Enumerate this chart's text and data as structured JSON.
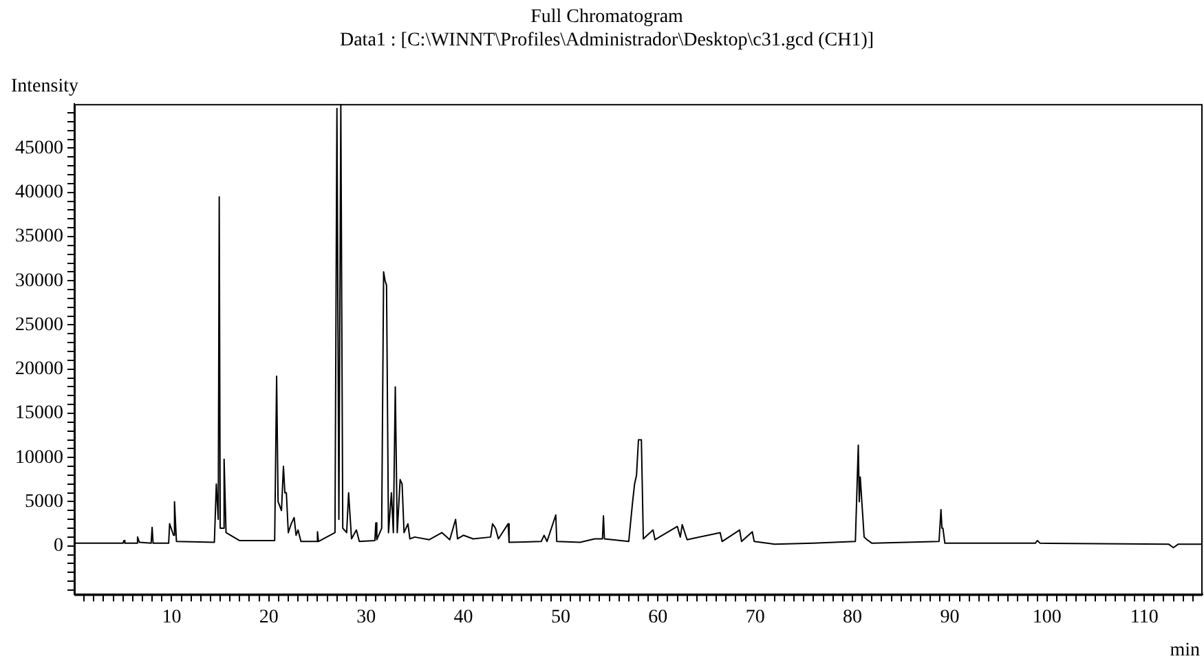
{
  "chart_data": {
    "type": "line",
    "title": "Full Chromatogram",
    "subtitle": "Data1 : [C:\\WINNT\\Profiles\\Administrador\\Desktop\\c31.gcd (CH1)]",
    "xlabel": "min",
    "ylabel": "Intensity",
    "x": [
      0,
      5,
      5.1,
      5.2,
      6.4,
      6.5,
      6.7,
      7.9,
      8,
      8.1,
      9.7,
      9.8,
      10.2,
      10.3,
      10.5,
      14.4,
      14.6,
      14.8,
      14.9,
      15.0,
      15.3,
      15.4,
      15.6,
      17,
      20.6,
      20.8,
      20.95,
      21.3,
      21.5,
      21.65,
      21.8,
      22.0,
      22.3,
      22.6,
      22.8,
      23.0,
      23.3,
      24.9,
      25,
      25.1,
      26.8,
      27.0,
      27.2,
      27.4,
      27.6,
      28.0,
      28.2,
      28.5,
      29,
      29.3,
      30.9,
      31,
      31.1,
      31.6,
      31.8,
      31.95,
      32.1,
      32.3,
      32.6,
      32.8,
      33.0,
      33.2,
      33.5,
      33.7,
      33.9,
      34.3,
      34.5,
      35,
      36.5,
      37.8,
      38.6,
      39.2,
      39.4,
      40,
      41,
      42.8,
      43,
      43.3,
      43.6,
      44.6,
      44.7,
      48,
      48.3,
      48.6,
      49.5,
      49.6,
      52,
      53.5,
      54.3,
      54.4,
      54.5,
      57,
      57.4,
      57.6,
      57.8,
      58.0,
      58.3,
      58.5,
      59.5,
      59.7,
      62,
      62.3,
      62.5,
      63,
      66.4,
      66.6,
      68.4,
      68.6,
      69.7,
      69.9,
      72,
      76,
      80.3,
      80.6,
      80.7,
      80.8,
      81.2,
      81.5,
      82,
      88.9,
      89.1,
      89.2,
      89.3,
      89.5,
      98.8,
      99,
      99.3,
      112.5,
      113,
      113.5,
      116
    ],
    "series": [
      {
        "color": "#000000",
        "values": [
          300,
          300,
          600,
          300,
          300,
          1000,
          400,
          300,
          2100,
          300,
          300,
          2500,
          1200,
          5000,
          500,
          400,
          7000,
          3000,
          39500,
          2000,
          2000,
          9800,
          1500,
          600,
          600,
          19200,
          5000,
          4000,
          9000,
          6000,
          6000,
          1500,
          2500,
          3200,
          1200,
          1800,
          500,
          500,
          1600,
          500,
          1500,
          49500,
          3000,
          50000,
          2000,
          1500,
          6000,
          800,
          1800,
          500,
          600,
          2600,
          700,
          2000,
          31000,
          30000,
          29500,
          1500,
          6000,
          1500,
          18000,
          1500,
          7500,
          7000,
          1500,
          2500,
          800,
          1000,
          700,
          1500,
          700,
          3000,
          800,
          1200,
          800,
          1000,
          2500,
          2000,
          800,
          2500,
          400,
          500,
          1200,
          500,
          3500,
          500,
          400,
          800,
          800,
          3400,
          800,
          500,
          5000,
          7000,
          8000,
          12000,
          12000,
          800,
          1800,
          700,
          2200,
          1000,
          2400,
          700,
          1500,
          500,
          1800,
          500,
          1600,
          500,
          200,
          300,
          500,
          11400,
          5000,
          7800,
          1000,
          700,
          300,
          500,
          4100,
          2000,
          2000,
          300,
          300,
          600,
          300,
          200,
          -200,
          200,
          200
        ]
      }
    ],
    "xlim": [
      0,
      116
    ],
    "ylim": [
      -5500,
      50000
    ],
    "xticks": [
      {
        "value": 1,
        "label": null
      },
      {
        "value": 2,
        "label": null
      },
      {
        "value": 3,
        "label": null
      },
      {
        "value": 4,
        "label": null
      },
      {
        "value": 5,
        "label": null
      },
      {
        "value": 6,
        "label": null
      },
      {
        "value": 7,
        "label": null
      },
      {
        "value": 8,
        "label": null
      },
      {
        "value": 9,
        "label": null
      },
      10,
      {
        "value": 11,
        "label": null
      },
      {
        "value": 12,
        "label": null
      },
      {
        "value": 13,
        "label": null
      },
      {
        "value": 14,
        "label": null
      },
      {
        "value": 15,
        "label": null
      },
      {
        "value": 16,
        "label": null
      },
      {
        "value": 17,
        "label": null
      },
      {
        "value": 18,
        "label": null
      },
      {
        "value": 19,
        "label": null
      },
      20,
      {
        "value": 21,
        "label": null
      },
      {
        "value": 22,
        "label": null
      },
      {
        "value": 23,
        "label": null
      },
      {
        "value": 24,
        "label": null
      },
      {
        "value": 25,
        "label": null
      },
      {
        "value": 26,
        "label": null
      },
      {
        "value": 27,
        "label": null
      },
      {
        "value": 28,
        "label": null
      },
      {
        "value": 29,
        "label": null
      },
      30,
      {
        "value": 31,
        "label": null
      },
      {
        "value": 32,
        "label": null
      },
      {
        "value": 33,
        "label": null
      },
      {
        "value": 34,
        "label": null
      },
      {
        "value": 35,
        "label": null
      },
      {
        "value": 36,
        "label": null
      },
      {
        "value": 37,
        "label": null
      },
      {
        "value": 38,
        "label": null
      },
      {
        "value": 39,
        "label": null
      },
      40,
      {
        "value": 41,
        "label": null
      },
      {
        "value": 42,
        "label": null
      },
      {
        "value": 43,
        "label": null
      },
      {
        "value": 44,
        "label": null
      },
      {
        "value": 45,
        "label": null
      },
      {
        "value": 46,
        "label": null
      },
      {
        "value": 47,
        "label": null
      },
      {
        "value": 48,
        "label": null
      },
      {
        "value": 49,
        "label": null
      },
      50,
      {
        "value": 51,
        "label": null
      },
      {
        "value": 52,
        "label": null
      },
      {
        "value": 53,
        "label": null
      },
      {
        "value": 54,
        "label": null
      },
      {
        "value": 55,
        "label": null
      },
      {
        "value": 56,
        "label": null
      },
      {
        "value": 57,
        "label": null
      },
      {
        "value": 58,
        "label": null
      },
      {
        "value": 59,
        "label": null
      },
      60,
      {
        "value": 61,
        "label": null
      },
      {
        "value": 62,
        "label": null
      },
      {
        "value": 63,
        "label": null
      },
      {
        "value": 64,
        "label": null
      },
      {
        "value": 65,
        "label": null
      },
      {
        "value": 66,
        "label": null
      },
      {
        "value": 67,
        "label": null
      },
      {
        "value": 68,
        "label": null
      },
      {
        "value": 69,
        "label": null
      },
      70,
      {
        "value": 71,
        "label": null
      },
      {
        "value": 72,
        "label": null
      },
      {
        "value": 73,
        "label": null
      },
      {
        "value": 74,
        "label": null
      },
      {
        "value": 75,
        "label": null
      },
      {
        "value": 76,
        "label": null
      },
      {
        "value": 77,
        "label": null
      },
      {
        "value": 78,
        "label": null
      },
      {
        "value": 79,
        "label": null
      },
      80,
      {
        "value": 81,
        "label": null
      },
      {
        "value": 82,
        "label": null
      },
      {
        "value": 83,
        "label": null
      },
      {
        "value": 84,
        "label": null
      },
      {
        "value": 85,
        "label": null
      },
      {
        "value": 86,
        "label": null
      },
      {
        "value": 87,
        "label": null
      },
      {
        "value": 88,
        "label": null
      },
      {
        "value": 89,
        "label": null
      },
      90,
      {
        "value": 91,
        "label": null
      },
      {
        "value": 92,
        "label": null
      },
      {
        "value": 93,
        "label": null
      },
      {
        "value": 94,
        "label": null
      },
      {
        "value": 95,
        "label": null
      },
      {
        "value": 96,
        "label": null
      },
      {
        "value": 97,
        "label": null
      },
      {
        "value": 98,
        "label": null
      },
      {
        "value": 99,
        "label": null
      },
      100,
      {
        "value": 101,
        "label": null
      },
      {
        "value": 102,
        "label": null
      },
      {
        "value": 103,
        "label": null
      },
      {
        "value": 104,
        "label": null
      },
      {
        "value": 105,
        "label": null
      },
      {
        "value": 106,
        "label": null
      },
      {
        "value": 107,
        "label": null
      },
      {
        "value": 108,
        "label": null
      },
      {
        "value": 109,
        "label": null
      },
      110,
      {
        "value": 111,
        "label": null
      },
      {
        "value": 112,
        "label": null
      },
      {
        "value": 113,
        "label": null
      },
      {
        "value": 114,
        "label": null
      },
      {
        "value": 115,
        "label": null
      }
    ],
    "yticks": [
      {
        "value": -5000,
        "label": null
      },
      {
        "value": -4000,
        "label": null
      },
      {
        "value": -3000,
        "label": null
      },
      {
        "value": -2000,
        "label": null
      },
      {
        "value": -1000,
        "label": null
      },
      0,
      {
        "value": 1000,
        "label": null
      },
      {
        "value": 2000,
        "label": null
      },
      {
        "value": 3000,
        "label": null
      },
      {
        "value": 4000,
        "label": null
      },
      5000,
      {
        "value": 6000,
        "label": null
      },
      {
        "value": 7000,
        "label": null
      },
      {
        "value": 8000,
        "label": null
      },
      {
        "value": 9000,
        "label": null
      },
      10000,
      {
        "value": 11000,
        "label": null
      },
      {
        "value": 12000,
        "label": null
      },
      {
        "value": 13000,
        "label": null
      },
      {
        "value": 14000,
        "label": null
      },
      15000,
      {
        "value": 16000,
        "label": null
      },
      {
        "value": 17000,
        "label": null
      },
      {
        "value": 18000,
        "label": null
      },
      {
        "value": 19000,
        "label": null
      },
      20000,
      {
        "value": 21000,
        "label": null
      },
      {
        "value": 22000,
        "label": null
      },
      {
        "value": 23000,
        "label": null
      },
      {
        "value": 24000,
        "label": null
      },
      25000,
      {
        "value": 26000,
        "label": null
      },
      {
        "value": 27000,
        "label": null
      },
      {
        "value": 28000,
        "label": null
      },
      {
        "value": 29000,
        "label": null
      },
      30000,
      {
        "value": 31000,
        "label": null
      },
      {
        "value": 32000,
        "label": null
      },
      {
        "value": 33000,
        "label": null
      },
      {
        "value": 34000,
        "label": null
      },
      35000,
      {
        "value": 36000,
        "label": null
      },
      {
        "value": 37000,
        "label": null
      },
      {
        "value": 38000,
        "label": null
      },
      {
        "value": 39000,
        "label": null
      },
      40000,
      {
        "value": 41000,
        "label": null
      },
      {
        "value": 42000,
        "label": null
      },
      {
        "value": 43000,
        "label": null
      },
      {
        "value": 44000,
        "label": null
      },
      45000,
      {
        "value": 46000,
        "label": null
      },
      {
        "value": 47000,
        "label": null
      },
      {
        "value": 48000,
        "label": null
      },
      {
        "value": 49000,
        "label": null
      }
    ],
    "grid": false,
    "legend": false,
    "marker": "none",
    "line_style": "solid"
  }
}
